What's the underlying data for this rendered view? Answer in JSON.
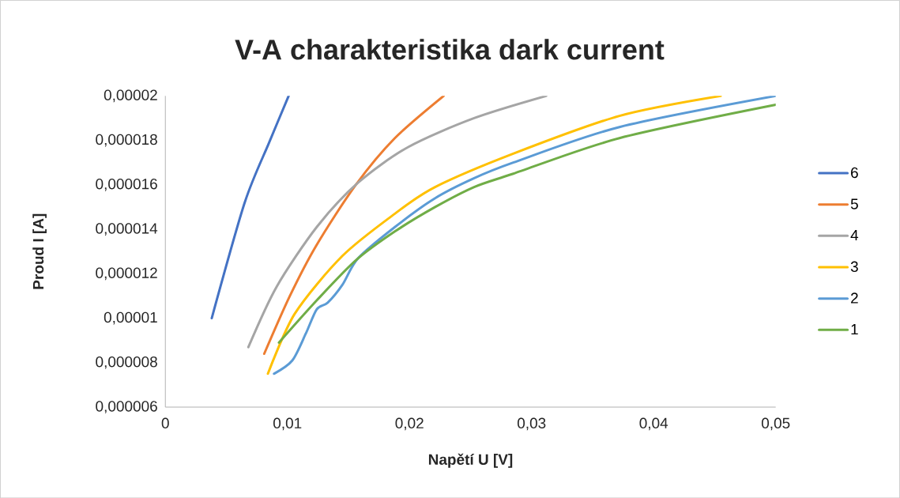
{
  "chart_data": {
    "type": "line",
    "title": "V-A charakteristika dark current",
    "xlabel": "Napětí U [V]",
    "ylabel": "Proud I [A]",
    "xlim": [
      0,
      0.05
    ],
    "ylim": [
      6e-06,
      2e-05
    ],
    "xticks": [
      0,
      {
        "value": 0.01,
        "label": "0,01"
      },
      {
        "value": 0.02,
        "label": "0,02"
      },
      {
        "value": 0.03,
        "label": "0,03"
      },
      {
        "value": 0.04,
        "label": "0,04"
      },
      {
        "value": 0.05,
        "label": "0,05"
      }
    ],
    "yticks": [
      {
        "value": 6e-06,
        "label": "0,000006"
      },
      {
        "value": 8e-06,
        "label": "0,000008"
      },
      {
        "value": 1e-05,
        "label": "0,00001"
      },
      {
        "value": 1.2e-05,
        "label": "0,000012"
      },
      {
        "value": 1.4e-05,
        "label": "0,000014"
      },
      {
        "value": 1.6e-05,
        "label": "0,000016"
      },
      {
        "value": 1.8e-05,
        "label": "0,000018"
      },
      {
        "value": 2e-05,
        "label": "0,00002"
      }
    ],
    "legend": "right",
    "marker": "none",
    "line_style": "solid",
    "grid": false,
    "series": [
      {
        "name": "6",
        "color": "#4472c4",
        "x": [
          0.0038,
          0.0065,
          0.0085,
          0.0101
        ],
        "values": [
          1e-05,
          1.52e-05,
          1.79e-05,
          2e-05
        ]
      },
      {
        "name": "5",
        "color": "#ed7d31",
        "x": [
          0.0081,
          0.0102,
          0.0124,
          0.0156,
          0.0188,
          0.0228
        ],
        "values": [
          8.4e-06,
          1.1e-05,
          1.33e-05,
          1.6e-05,
          1.81e-05,
          2e-05
        ]
      },
      {
        "name": "4",
        "color": "#a5a5a5",
        "x": [
          0.0068,
          0.0091,
          0.0124,
          0.0158,
          0.0199,
          0.0253,
          0.0312
        ],
        "values": [
          8.7e-06,
          1.14e-05,
          1.41e-05,
          1.61e-05,
          1.77e-05,
          1.9e-05,
          2e-05
        ]
      },
      {
        "name": "3",
        "color": "#ffc000",
        "x": [
          0.0084,
          0.0106,
          0.0145,
          0.0188,
          0.0221,
          0.0285,
          0.0372,
          0.0455
        ],
        "values": [
          7.5e-06,
          1.02e-05,
          1.28e-05,
          1.47e-05,
          1.59e-05,
          1.74e-05,
          1.91e-05,
          2e-05
        ]
      },
      {
        "name": "2",
        "color": "#5b9bd5",
        "x": [
          0.0089,
          0.0104,
          0.0115,
          0.0124,
          0.0133,
          0.0145,
          0.0158,
          0.0188,
          0.0221,
          0.0253,
          0.0285,
          0.0372,
          0.05
        ],
        "values": [
          7.5e-06,
          8.1e-06,
          9.3e-06,
          1.04e-05,
          1.07e-05,
          1.15e-05,
          1.27e-05,
          1.41e-05,
          1.54e-05,
          1.63e-05,
          1.7e-05,
          1.86e-05,
          2e-05
        ]
      },
      {
        "name": "1",
        "color": "#70ad47",
        "x": [
          0.0093,
          0.0124,
          0.0156,
          0.0188,
          0.0221,
          0.0253,
          0.0285,
          0.0372,
          0.05
        ],
        "values": [
          8.9e-06,
          1.08e-05,
          1.26e-05,
          1.39e-05,
          1.5e-05,
          1.59e-05,
          1.65e-05,
          1.81e-05,
          1.96e-05
        ]
      }
    ]
  }
}
